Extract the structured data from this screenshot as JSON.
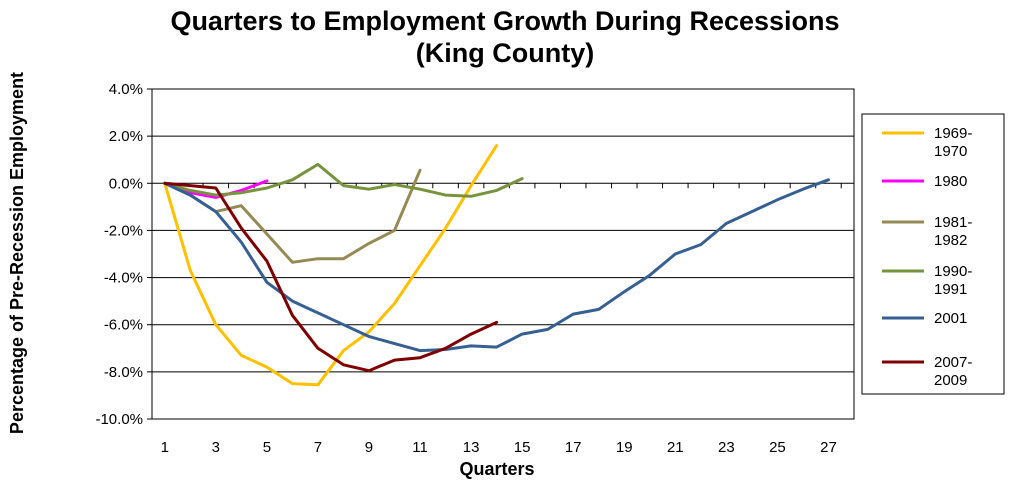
{
  "chart_data": {
    "type": "line",
    "title": "Quarters to Employment Growth During Recessions",
    "subtitle": "(King County)",
    "xlabel": "Quarters",
    "ylabel": "Percentage of Pre-Recession Employment",
    "xlim": [
      1,
      27
    ],
    "ylim": [
      -10.0,
      4.0
    ],
    "x_ticks": [
      1,
      3,
      5,
      7,
      9,
      11,
      13,
      15,
      17,
      19,
      21,
      23,
      25,
      27
    ],
    "y_ticks": [
      "4.0%",
      "2.0%",
      "0.0%",
      "-2.0%",
      "-4.0%",
      "-6.0%",
      "-8.0%",
      "-10.0%"
    ],
    "y_tick_values": [
      4,
      2,
      0,
      -2,
      -4,
      -6,
      -8,
      -10
    ],
    "horizontal_grid": true,
    "legend_position": "right",
    "series": [
      {
        "name": "1969-1970",
        "legend_lines": [
          "1969-",
          "1970"
        ],
        "color": "#FFC000",
        "x": [
          1,
          2,
          3,
          4,
          5,
          6,
          7,
          8,
          9,
          10,
          11,
          12,
          13,
          14
        ],
        "y": [
          0.0,
          -3.7,
          -6.0,
          -7.3,
          -7.8,
          -8.5,
          -8.55,
          -7.1,
          -6.3,
          -5.1,
          -3.5,
          -1.9,
          -0.1,
          1.6
        ]
      },
      {
        "name": "1980",
        "legend_lines": [
          "1980"
        ],
        "color": "#FF00FF",
        "x": [
          1,
          2,
          3,
          4,
          5
        ],
        "y": [
          0.0,
          -0.4,
          -0.6,
          -0.3,
          0.1
        ]
      },
      {
        "name": "1981-1982",
        "legend_lines": [
          "1981-",
          "1982"
        ],
        "color": "#948A54",
        "x": [
          1,
          2,
          3,
          4,
          5,
          6,
          7,
          8,
          9,
          10,
          11
        ],
        "y": [
          0.0,
          -0.5,
          -1.2,
          -0.95,
          -2.15,
          -3.35,
          -3.2,
          -3.2,
          -2.55,
          -2.0,
          0.55
        ]
      },
      {
        "name": "1990-1991",
        "legend_lines": [
          "1990-",
          "1991"
        ],
        "color": "#77933C",
        "x": [
          1,
          2,
          3,
          4,
          5,
          6,
          7,
          8,
          9,
          10,
          11,
          12,
          13,
          14,
          15
        ],
        "y": [
          0.0,
          -0.3,
          -0.5,
          -0.4,
          -0.2,
          0.15,
          0.8,
          -0.1,
          -0.25,
          -0.05,
          -0.25,
          -0.5,
          -0.55,
          -0.3,
          0.2
        ]
      },
      {
        "name": "2001",
        "legend_lines": [
          "2001"
        ],
        "color": "#376092",
        "x": [
          1,
          2,
          3,
          4,
          5,
          6,
          7,
          8,
          9,
          10,
          11,
          12,
          13,
          14,
          15,
          16,
          17,
          18,
          19,
          20,
          21,
          22,
          23,
          24,
          25,
          26,
          27
        ],
        "y": [
          0.0,
          -0.5,
          -1.2,
          -2.5,
          -4.2,
          -5.0,
          -5.5,
          -6.0,
          -6.5,
          -6.8,
          -7.1,
          -7.05,
          -6.9,
          -6.95,
          -6.4,
          -6.2,
          -5.55,
          -5.35,
          -4.6,
          -3.9,
          -3.0,
          -2.6,
          -1.7,
          -1.2,
          -0.7,
          -0.25,
          0.15
        ]
      },
      {
        "name": "2007-2009",
        "legend_lines": [
          "2007-",
          "2009"
        ],
        "color": "#7F0000",
        "x": [
          1,
          2,
          3,
          4,
          5,
          6,
          7,
          8,
          9,
          10,
          11,
          12,
          13,
          14
        ],
        "y": [
          0.0,
          -0.1,
          -0.2,
          -1.9,
          -3.3,
          -5.6,
          -7.0,
          -7.7,
          -7.95,
          -7.5,
          -7.4,
          -7.0,
          -6.4,
          -5.9
        ]
      }
    ]
  }
}
